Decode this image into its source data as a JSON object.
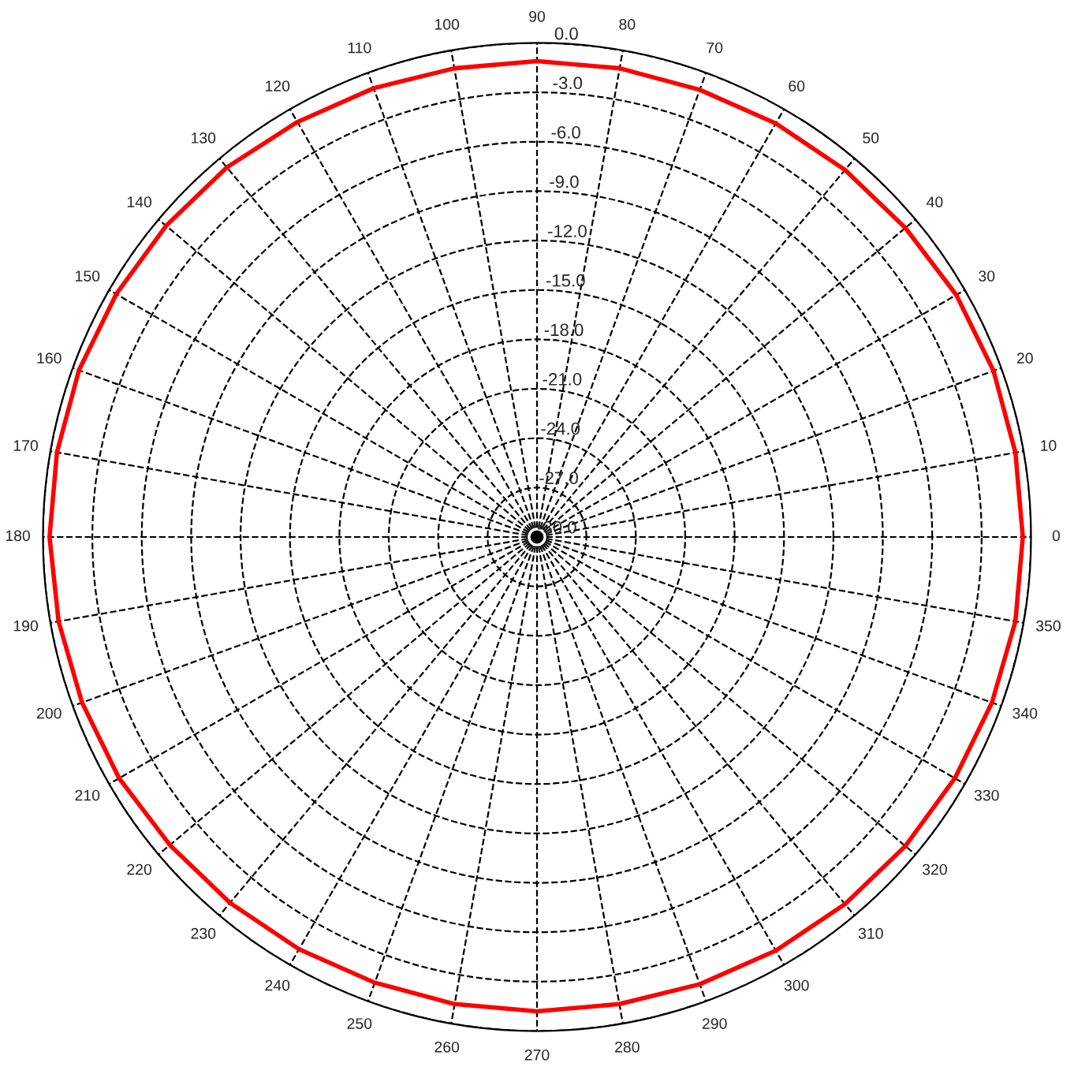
{
  "chart_data": {
    "type": "radar",
    "categories": [
      "90",
      "80",
      "70",
      "60",
      "50",
      "40",
      "30",
      "20",
      "10",
      "0",
      "350",
      "340",
      "330",
      "320",
      "310",
      "300",
      "290",
      "280",
      "270",
      "260",
      "250",
      "240",
      "230",
      "220",
      "210",
      "200",
      "190",
      "180",
      "170",
      "160",
      "150",
      "140",
      "130",
      "120",
      "110",
      "100"
    ],
    "series": [
      {
        "color": "#ff0000",
        "values": [
          -1.1,
          -1.1,
          -1.1,
          -1.0,
          -0.9,
          -0.8,
          -0.6,
          -0.5,
          -0.5,
          -0.5,
          -0.5,
          -0.6,
          -0.7,
          -0.8,
          -0.9,
          -1.0,
          -1.1,
          -1.2,
          -1.2,
          -1.2,
          -1.2,
          -1.1,
          -1.0,
          -0.9,
          -0.7,
          -0.6,
          -0.5,
          -0.4,
          -0.4,
          -0.4,
          -0.5,
          -0.6,
          -0.7,
          -0.9,
          -1.0,
          -1.1
        ]
      }
    ],
    "ylim": [
      -30,
      0
    ],
    "yticks": [
      {
        "value": 0,
        "label": "0.0"
      },
      {
        "value": -3,
        "label": "-3.0"
      },
      {
        "value": -6,
        "label": "-6.0"
      },
      {
        "value": -9,
        "label": "-9.0"
      },
      {
        "value": -12,
        "label": "-12.0"
      },
      {
        "value": -15,
        "label": "-15.0"
      },
      {
        "value": -18,
        "label": "-18.0"
      },
      {
        "value": -21,
        "label": "-21.0"
      },
      {
        "value": -24,
        "label": "-24.0"
      },
      {
        "value": -27,
        "label": "-27.0"
      },
      {
        "value": -30,
        "label": "-30.0"
      }
    ],
    "grid": true,
    "line_style": "solid",
    "marker": "none"
  }
}
